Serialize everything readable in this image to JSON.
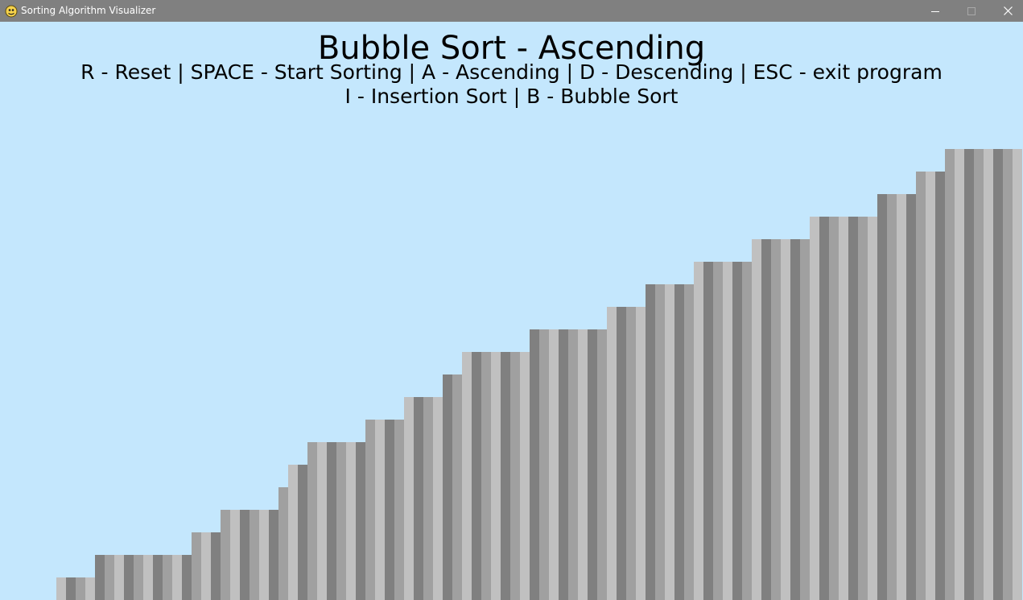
{
  "window": {
    "title": "Sorting Algorithm Visualizer",
    "app_icon": "pygame-snake-icon",
    "controls": [
      "minimize-icon",
      "maximize-icon",
      "close-icon"
    ]
  },
  "visualizer": {
    "heading": "Bubble Sort - Ascending",
    "controls_line_1": "R - Reset | SPACE - Start Sorting | A - Ascending | D - Descending | ESC - exit program",
    "controls_line_2": "I - Insertion Sort | B - Bubble Sort",
    "colors": {
      "background": "#c4e7fd",
      "bar_shades": [
        "#808080",
        "#a0a0a0",
        "#c0c0c0"
      ]
    }
  },
  "chart_data": {
    "type": "bar",
    "sorted": true,
    "order": "ascending",
    "max_value": 20,
    "values": [
      1,
      1,
      1,
      1,
      2,
      2,
      2,
      2,
      2,
      2,
      2,
      2,
      2,
      2,
      3,
      3,
      3,
      4,
      4,
      4,
      4,
      4,
      4,
      5,
      6,
      6,
      7,
      7,
      7,
      7,
      7,
      7,
      8,
      8,
      8,
      8,
      9,
      9,
      9,
      9,
      10,
      10,
      11,
      11,
      11,
      11,
      11,
      11,
      11,
      12,
      12,
      12,
      12,
      12,
      12,
      12,
      12,
      13,
      13,
      13,
      13,
      14,
      14,
      14,
      14,
      14,
      15,
      15,
      15,
      15,
      15,
      15,
      16,
      16,
      16,
      16,
      16,
      16,
      17,
      17,
      17,
      17,
      17,
      17,
      17,
      18,
      18,
      18,
      18,
      19,
      19,
      19,
      20,
      20,
      20,
      20,
      20,
      20,
      20,
      20
    ]
  }
}
